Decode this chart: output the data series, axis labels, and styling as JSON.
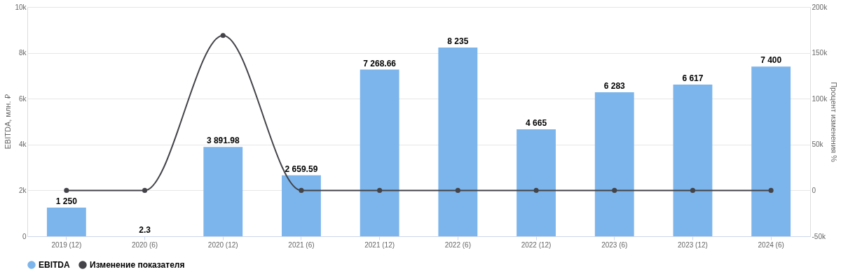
{
  "chart_data": {
    "type": "bar",
    "ylabel": "EBITDA, млн. ₽",
    "y2label": "Процент изменения %",
    "categories": [
      "2019 (12)",
      "2020 (6)",
      "2020 (12)",
      "2021 (6)",
      "2021 (12)",
      "2022 (6)",
      "2022 (12)",
      "2023 (6)",
      "2023 (12)",
      "2024 (6)"
    ],
    "series": [
      {
        "name": "EBITDA",
        "color": "#7cb5ec",
        "values": [
          1250,
          2.3,
          3891.98,
          2659.59,
          7268.66,
          8235,
          4665,
          6283,
          6617,
          7400
        ],
        "value_labels": [
          "1 250",
          "2.3",
          "3 891.98",
          "2 659.59",
          "7 268.66",
          "8 235",
          "4 665",
          "6 283",
          "6 617",
          "7 400"
        ]
      },
      {
        "name": "Изменение показателя",
        "type": "line",
        "axis": "y2",
        "color": "#434348",
        "marker": "circle",
        "values": [
          0,
          0,
          169000,
          0,
          0,
          0,
          0,
          0,
          0,
          0
        ]
      }
    ],
    "ylim": [
      0,
      10000
    ],
    "yticks": [
      0,
      {
        "value": 2000,
        "label": "2k"
      },
      {
        "value": 4000,
        "label": "4k"
      },
      {
        "value": 6000,
        "label": "6k"
      },
      {
        "value": 8000,
        "label": "8k"
      },
      {
        "value": 10000,
        "label": "10k"
      }
    ],
    "y2lim": [
      -50000,
      200000
    ],
    "y2ticks": [
      {
        "value": -50000,
        "label": "-50k"
      },
      0,
      {
        "value": 50000,
        "label": "50k"
      },
      {
        "value": 100000,
        "label": "100k"
      },
      {
        "value": 150000,
        "label": "150k"
      },
      {
        "value": 200000,
        "label": "200k"
      }
    ],
    "grid": "y",
    "legend": "bottom"
  }
}
